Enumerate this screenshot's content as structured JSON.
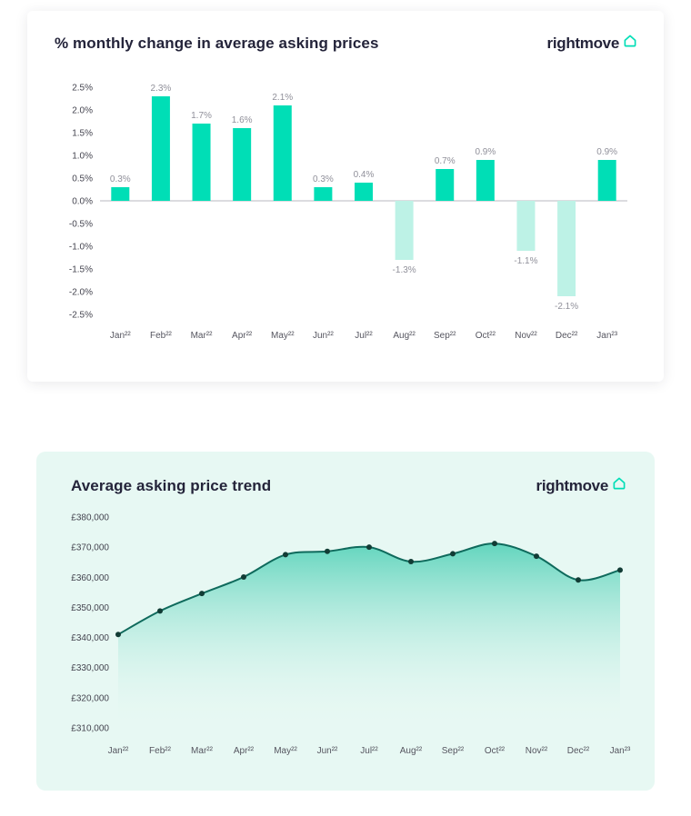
{
  "logo": {
    "text": "rightmove",
    "icon": "house-icon"
  },
  "bar_card": {
    "title": "% monthly change in average asking prices"
  },
  "line_card": {
    "title": "Average asking price trend"
  },
  "colors": {
    "positive_bar": "#00deb6",
    "negative_bar": "#bdf2e6",
    "axis_line": "#b9b9c2",
    "tick_text": "#44444f",
    "value_label": "#90909a",
    "x_label": "#55555f",
    "mint_background": "#e7f8f3",
    "title_text": "#24243a",
    "line_stroke": "#0f6a5c",
    "dot_fill": "#123c35",
    "area_top": "#41ccb0",
    "area_bottom": "#e7f8f3",
    "brand_teal": "#00deb6"
  },
  "chart_data": [
    {
      "type": "bar",
      "title": "% monthly change in average asking prices",
      "categories": [
        "Jan²²",
        "Feb²²",
        "Mar²²",
        "Apr²²",
        "May²²",
        "Jun²²",
        "Jul²²",
        "Aug²²",
        "Sep²²",
        "Oct²²",
        "Nov²²",
        "Dec²²",
        "Jan²³"
      ],
      "values": [
        0.3,
        2.3,
        1.7,
        1.6,
        2.1,
        0.3,
        0.4,
        -1.3,
        0.7,
        0.9,
        -1.1,
        -2.1,
        0.9
      ],
      "value_labels": [
        "0.3%",
        "2.3%",
        "1.7%",
        "1.6%",
        "2.1%",
        "0.3%",
        "0.4%",
        "-1.3%",
        "0.7%",
        "0.9%",
        "-1.1%",
        "-2.1%",
        "0.9%"
      ],
      "xlabel": "",
      "ylabel": "",
      "ylim": [
        -2.5,
        2.5
      ],
      "ytick_step": 0.5,
      "ytick_labels": [
        "2.5%",
        "2.0%",
        "1.5%",
        "1.0%",
        "0.5%",
        "0.0%",
        "-0.5%",
        "-1.0%",
        "-1.5%",
        "-2.0%",
        "-2.5%"
      ],
      "grid": false,
      "legend": false
    },
    {
      "type": "area",
      "title": "Average asking price trend",
      "categories": [
        "Jan²²",
        "Feb²²",
        "Mar²²",
        "Apr²²",
        "May²²",
        "Jun²²",
        "Jul²²",
        "Aug²²",
        "Sep²²",
        "Oct²²",
        "Nov²²",
        "Dec²²",
        "Jan²³"
      ],
      "values": [
        341000,
        348800,
        354600,
        360100,
        367500,
        368600,
        370000,
        365200,
        367800,
        371200,
        367000,
        359100,
        362400
      ],
      "xlabel": "",
      "ylabel": "",
      "ylim": [
        310000,
        380000
      ],
      "ytick_step": 10000,
      "ytick_labels": [
        "£380,000",
        "£370,000",
        "£360,000",
        "£350,000",
        "£340,000",
        "£330,000",
        "£320,000",
        "£310,000"
      ],
      "grid": false,
      "legend": false
    }
  ]
}
